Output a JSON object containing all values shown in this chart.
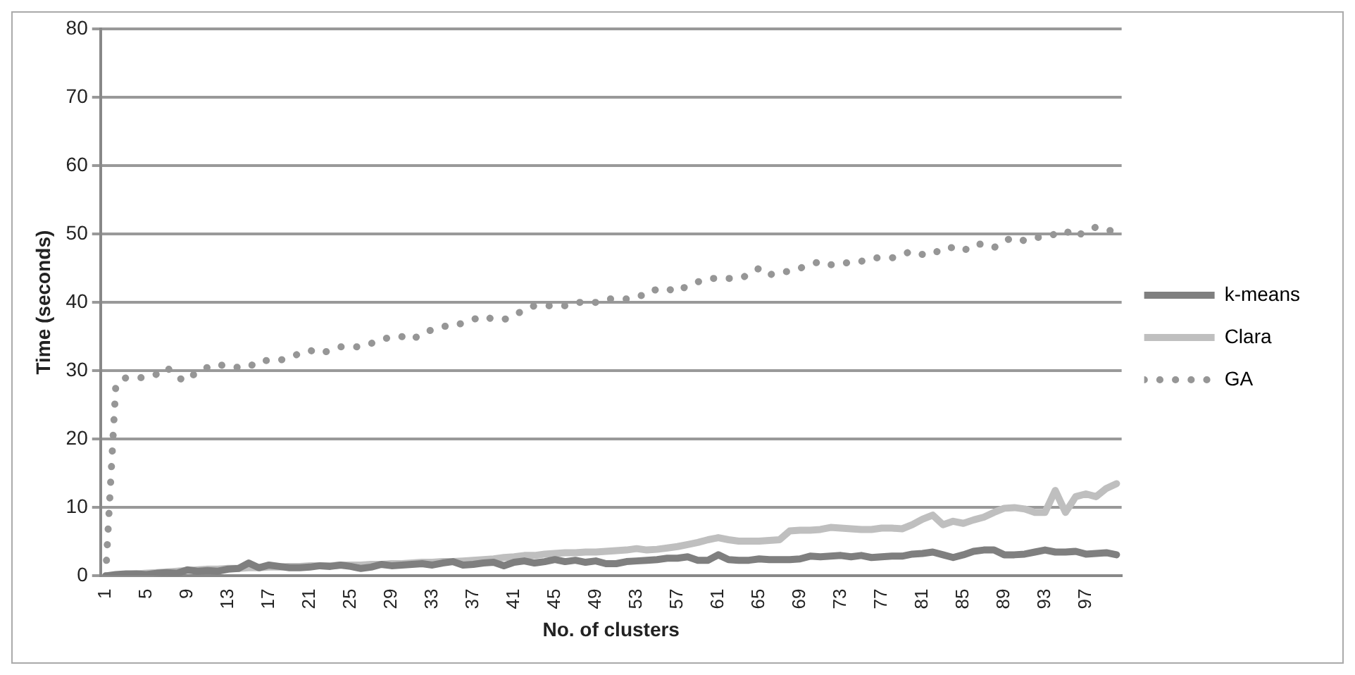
{
  "chart_data": {
    "type": "line",
    "xlabel": "No. of clusters",
    "ylabel": "Time (seconds)",
    "categories": [
      "1",
      null,
      null,
      null,
      "5",
      null,
      null,
      null,
      "9",
      null,
      null,
      null,
      "13",
      null,
      null,
      null,
      "17",
      null,
      null,
      null,
      "21",
      null,
      null,
      null,
      "25",
      null,
      null,
      null,
      "29",
      null,
      null,
      null,
      "33",
      null,
      null,
      null,
      "37",
      null,
      null,
      null,
      "41",
      null,
      null,
      null,
      "45",
      null,
      null,
      null,
      "49",
      null,
      null,
      null,
      "53",
      null,
      null,
      null,
      "57",
      null,
      null,
      null,
      "61",
      null,
      null,
      null,
      "65",
      null,
      null,
      null,
      "69",
      null,
      null,
      null,
      "73",
      null,
      null,
      null,
      "77",
      null,
      null,
      null,
      "81",
      null,
      null,
      null,
      "85",
      null,
      null,
      null,
      "89",
      null,
      null,
      null,
      "93",
      null,
      null,
      null,
      "97",
      null,
      null,
      null
    ],
    "series": [
      {
        "name": "k-means",
        "color": "#7f7f7f",
        "line_style": "solid",
        "values": [
          0,
          0.2,
          0.3,
          0.3,
          0.2,
          0.4,
          0.5,
          0.4,
          0.9,
          0.7,
          0.8,
          0.7,
          1,
          1.1,
          1.9,
          1.2,
          1.6,
          1.4,
          1.2,
          1.2,
          1.3,
          1.5,
          1.4,
          1.6,
          1.4,
          1.1,
          1.3,
          1.7,
          1.5,
          1.6,
          1.7,
          1.8,
          1.6,
          1.9,
          2.1,
          1.6,
          1.7,
          1.9,
          2,
          1.5,
          2,
          2.2,
          1.9,
          2.1,
          2.4,
          2.1,
          2.3,
          2,
          2.2,
          1.8,
          1.8,
          2.1,
          2.2,
          2.3,
          2.4,
          2.6,
          2.6,
          2.8,
          2.3,
          2.3,
          3.1,
          2.4,
          2.3,
          2.3,
          2.5,
          2.4,
          2.4,
          2.4,
          2.5,
          2.9,
          2.8,
          2.9,
          3,
          2.8,
          3,
          2.7,
          2.8,
          2.9,
          2.9,
          3.2,
          3.3,
          3.5,
          3.1,
          2.7,
          3.1,
          3.6,
          3.8,
          3.8,
          3.1,
          3.1,
          3.2,
          3.5,
          3.8,
          3.5,
          3.5,
          3.6,
          3.2,
          3.3,
          3.4,
          3.1
        ]
      },
      {
        "name": "Clara",
        "color": "#bfbfbf",
        "line_style": "solid",
        "values": [
          0,
          0.1,
          0.2,
          0.3,
          0.4,
          0.5,
          0.6,
          0.7,
          0.8,
          0.9,
          1,
          1,
          1.1,
          1.1,
          1.2,
          1.2,
          1.3,
          1.3,
          1.4,
          1.4,
          1.5,
          1.5,
          1.5,
          1.6,
          1.6,
          1.6,
          1.7,
          1.7,
          1.8,
          1.8,
          1.9,
          2,
          2,
          2.1,
          2.1,
          2.2,
          2.3,
          2.4,
          2.5,
          2.7,
          2.8,
          3,
          3,
          3.2,
          3.3,
          3.4,
          3.4,
          3.5,
          3.5,
          3.6,
          3.7,
          3.8,
          4,
          3.8,
          3.9,
          4.1,
          4.3,
          4.6,
          4.9,
          5.3,
          5.6,
          5.3,
          5.1,
          5.1,
          5.1,
          5.2,
          5.3,
          6.6,
          6.7,
          6.7,
          6.8,
          7.1,
          7,
          6.9,
          6.8,
          6.8,
          7,
          7,
          6.9,
          7.5,
          8.3,
          8.9,
          7.5,
          8,
          7.7,
          8.2,
          8.6,
          9.3,
          9.9,
          10,
          9.8,
          9.3,
          9.3,
          12.5,
          9.3,
          11.6,
          12,
          11.6,
          12.8,
          13.5
        ]
      },
      {
        "name": "GA",
        "color": "#969696",
        "line_style": "dotted",
        "values": [
          0,
          28,
          29,
          29,
          29,
          29.5,
          30.5,
          29,
          28.5,
          30,
          30.5,
          31,
          30.5,
          30.5,
          30.5,
          31.5,
          31.5,
          31.5,
          32,
          32.5,
          33,
          32.5,
          33,
          33.5,
          33.5,
          33.5,
          34,
          34.5,
          35,
          35,
          34.5,
          35.5,
          36,
          36.5,
          36.5,
          37,
          37.5,
          38,
          37.5,
          37.5,
          38,
          39,
          39.5,
          39.5,
          39.5,
          39.5,
          40,
          40,
          40,
          40.5,
          40.5,
          40.5,
          41,
          41,
          42,
          42,
          41.5,
          42.5,
          43,
          43.5,
          43.5,
          43.5,
          43.5,
          44,
          45,
          44,
          44.5,
          44.5,
          45,
          45.5,
          46,
          45.5,
          45.5,
          46,
          46,
          46.5,
          46.5,
          46.5,
          47,
          47.5,
          47,
          47,
          48,
          48,
          47.5,
          48.5,
          48.5,
          48,
          49,
          49.5,
          49,
          49.5,
          49.5,
          50,
          50.5,
          49.5,
          50.5,
          51,
          50.5,
          50.5
        ]
      }
    ],
    "ylim": [
      0,
      80
    ],
    "yticks": [
      0,
      10,
      20,
      30,
      40,
      50,
      60,
      70,
      80
    ],
    "grid": "y",
    "legend": "right",
    "marker": "none"
  }
}
